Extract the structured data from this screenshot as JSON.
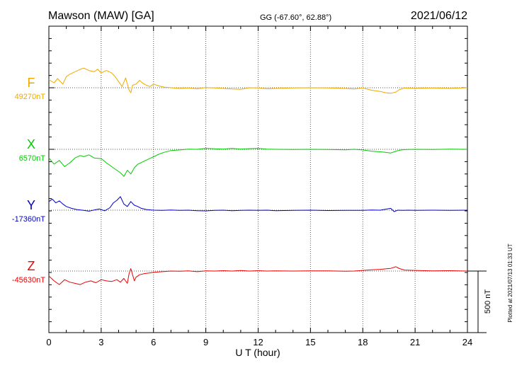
{
  "header": {
    "station": "Mawson (MAW)  [GA]",
    "coords": "GG (-67.60°,  62.88°)",
    "date": "2021/06/12"
  },
  "footer": {
    "plotted": "Plotted at 2021/07/13 01:33 UT"
  },
  "chart_data": {
    "type": "line",
    "title": "Mawson (MAW)  [GA]",
    "xlabel": "U T (hour)",
    "xlim": [
      0,
      24
    ],
    "xticks": [
      "0",
      "3",
      "6",
      "9",
      "12",
      "15",
      "18",
      "21",
      "24"
    ],
    "grid": true,
    "scale_bar": {
      "label": "500 nT",
      "value_nT": 500
    },
    "series": [
      {
        "name": "F",
        "baseline_label": "49270nT",
        "baseline": 49270,
        "color": "#f0a800",
        "x": [
          0,
          0.3,
          0.5,
          0.8,
          1,
          1.2,
          1.5,
          1.8,
          2,
          2.3,
          2.6,
          2.8,
          3,
          3.3,
          3.6,
          3.8,
          4,
          4.2,
          4.4,
          4.6,
          4.7,
          4.8,
          5,
          5.2,
          5.4,
          5.6,
          5.8,
          6,
          6.3,
          6.6,
          7,
          7.5,
          8,
          8.5,
          9,
          9.5,
          10,
          10.5,
          11,
          11.5,
          12,
          12.5,
          13,
          14,
          15,
          16,
          17,
          17.5,
          18,
          18.5,
          19,
          19.3,
          19.6,
          19.9,
          20.1,
          20.4,
          21,
          22,
          23,
          24
        ],
        "y": [
          49335,
          49310,
          49345,
          49300,
          49360,
          49380,
          49400,
          49420,
          49430,
          49410,
          49400,
          49420,
          49390,
          49410,
          49390,
          49360,
          49320,
          49280,
          49350,
          49250,
          49230,
          49290,
          49300,
          49330,
          49305,
          49290,
          49280,
          49300,
          49285,
          49275,
          49270,
          49265,
          49268,
          49262,
          49272,
          49268,
          49265,
          49260,
          49258,
          49270,
          49268,
          49262,
          49265,
          49268,
          49270,
          49268,
          49265,
          49260,
          49268,
          49250,
          49240,
          49230,
          49225,
          49235,
          49255,
          49268,
          49265,
          49268,
          49265,
          49270
        ]
      },
      {
        "name": "X",
        "baseline_label": "6570nT",
        "baseline": 6570,
        "color": "#00cc00",
        "x": [
          0,
          0.3,
          0.6,
          0.9,
          1.2,
          1.5,
          1.8,
          2,
          2.3,
          2.6,
          3,
          3.3,
          3.6,
          3.9,
          4.1,
          4.3,
          4.5,
          4.7,
          4.9,
          5.1,
          5.4,
          5.7,
          6,
          6.3,
          6.6,
          7,
          7.5,
          8,
          8.5,
          9,
          9.5,
          10,
          10.5,
          11,
          11.5,
          12,
          12.5,
          13,
          14,
          15,
          16,
          17,
          17.5,
          18,
          18.5,
          19,
          19.3,
          19.6,
          19.9,
          20.2,
          20.5,
          21,
          22,
          23,
          24
        ],
        "y": [
          6500,
          6450,
          6480,
          6430,
          6460,
          6500,
          6520,
          6510,
          6525,
          6500,
          6495,
          6460,
          6430,
          6400,
          6380,
          6350,
          6400,
          6370,
          6420,
          6450,
          6470,
          6490,
          6510,
          6530,
          6545,
          6560,
          6565,
          6572,
          6570,
          6578,
          6574,
          6572,
          6578,
          6572,
          6576,
          6578,
          6572,
          6570,
          6568,
          6570,
          6568,
          6566,
          6570,
          6565,
          6555,
          6550,
          6545,
          6540,
          6555,
          6565,
          6568,
          6570,
          6568,
          6572,
          6570
        ]
      },
      {
        "name": "Y",
        "baseline_label": "-17360nT",
        "baseline": -17360,
        "color": "#0000cc",
        "x": [
          0,
          0.2,
          0.4,
          0.6,
          0.8,
          1,
          1.3,
          1.6,
          2,
          2.3,
          2.6,
          2.9,
          3.2,
          3.5,
          3.7,
          3.9,
          4.1,
          4.3,
          4.5,
          4.7,
          4.9,
          5.1,
          5.3,
          5.6,
          6,
          6.5,
          7,
          7.5,
          8,
          8.5,
          9,
          9.5,
          10,
          10.5,
          11,
          11.5,
          12,
          12.5,
          13,
          14,
          15,
          16,
          17,
          18,
          18.5,
          19,
          19.3,
          19.6,
          19.8,
          20,
          20.3,
          20.6,
          21,
          22,
          23,
          24
        ],
        "y": [
          -17290,
          -17270,
          -17300,
          -17285,
          -17310,
          -17330,
          -17345,
          -17355,
          -17362,
          -17368,
          -17358,
          -17350,
          -17365,
          -17340,
          -17300,
          -17280,
          -17250,
          -17310,
          -17330,
          -17290,
          -17320,
          -17330,
          -17345,
          -17355,
          -17360,
          -17362,
          -17358,
          -17362,
          -17360,
          -17364,
          -17366,
          -17362,
          -17360,
          -17364,
          -17362,
          -17360,
          -17362,
          -17360,
          -17364,
          -17362,
          -17360,
          -17363,
          -17361,
          -17362,
          -17358,
          -17360,
          -17352,
          -17345,
          -17372,
          -17360,
          -17362,
          -17360,
          -17362,
          -17360,
          -17361,
          -17360
        ]
      },
      {
        "name": "Z",
        "baseline_label": "-45630nT",
        "baseline": -45630,
        "color": "#ee0000",
        "x": [
          0,
          0.3,
          0.6,
          0.9,
          1.2,
          1.5,
          1.8,
          2.1,
          2.4,
          2.7,
          3,
          3.3,
          3.6,
          3.9,
          4.1,
          4.3,
          4.5,
          4.6,
          4.7,
          4.8,
          4.9,
          5,
          5.2,
          5.5,
          5.8,
          6,
          6.5,
          7,
          7.5,
          8,
          8.5,
          9,
          9.5,
          10,
          10.5,
          11,
          11.5,
          12,
          12.5,
          13,
          14,
          15,
          16,
          17,
          17.5,
          18,
          18.5,
          19,
          19.3,
          19.6,
          19.9,
          20.1,
          20.4,
          21,
          22,
          23,
          24
        ],
        "y": [
          -45670,
          -45710,
          -45740,
          -45700,
          -45720,
          -45730,
          -45740,
          -45720,
          -45710,
          -45725,
          -45700,
          -45710,
          -45715,
          -45700,
          -45720,
          -45690,
          -45730,
          -45650,
          -45610,
          -45660,
          -45710,
          -45680,
          -45660,
          -45650,
          -45645,
          -45640,
          -45635,
          -45630,
          -45632,
          -45628,
          -45635,
          -45628,
          -45630,
          -45627,
          -45630,
          -45626,
          -45630,
          -45627,
          -45630,
          -45628,
          -45630,
          -45628,
          -45629,
          -45632,
          -45630,
          -45625,
          -45620,
          -45616,
          -45612,
          -45608,
          -45595,
          -45610,
          -45622,
          -45625,
          -45628,
          -45627,
          -45630
        ]
      }
    ]
  }
}
